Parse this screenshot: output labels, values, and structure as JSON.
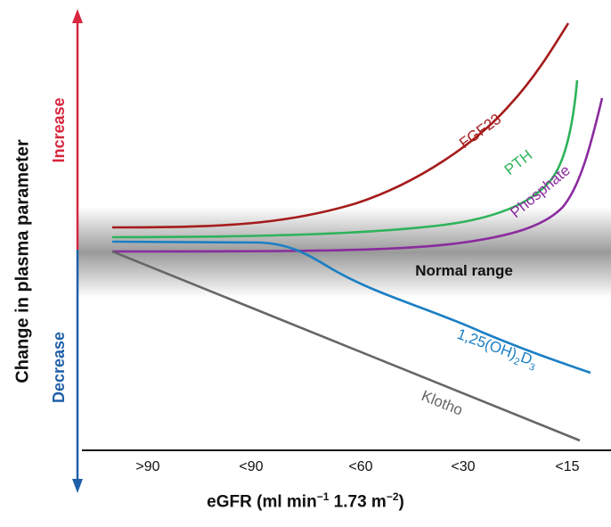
{
  "colors": {
    "increase": "#d7263d",
    "decrease": "#1f5fa8",
    "fgf23": "#a61b1b",
    "pth": "#2eb35a",
    "phosphate": "#8a2b9e",
    "vitd": "#1b7fc4",
    "klotho": "#666666"
  },
  "axis": {
    "ylabel": "Change in plasma parameter",
    "increase_label": "Increase",
    "decrease_label": "Decrease",
    "xlabel_main": "eGFR (ml min",
    "xlabel_exp1": "−1",
    "xlabel_mid": " 1.73 m",
    "xlabel_exp2": "−2",
    "xlabel_end": ")",
    "ticks": [
      ">90",
      "<90",
      "<60",
      "<30",
      "<15"
    ]
  },
  "band": {
    "label": "Normal range"
  },
  "curves": {
    "fgf23": "FGF23",
    "pth": "PTH",
    "phosphate": "Phosphate",
    "vitd_base": "1,25(OH)",
    "vitd_sub1": "2",
    "vitd_mid": "D",
    "vitd_sub2": "3",
    "klotho": "Klotho"
  }
}
